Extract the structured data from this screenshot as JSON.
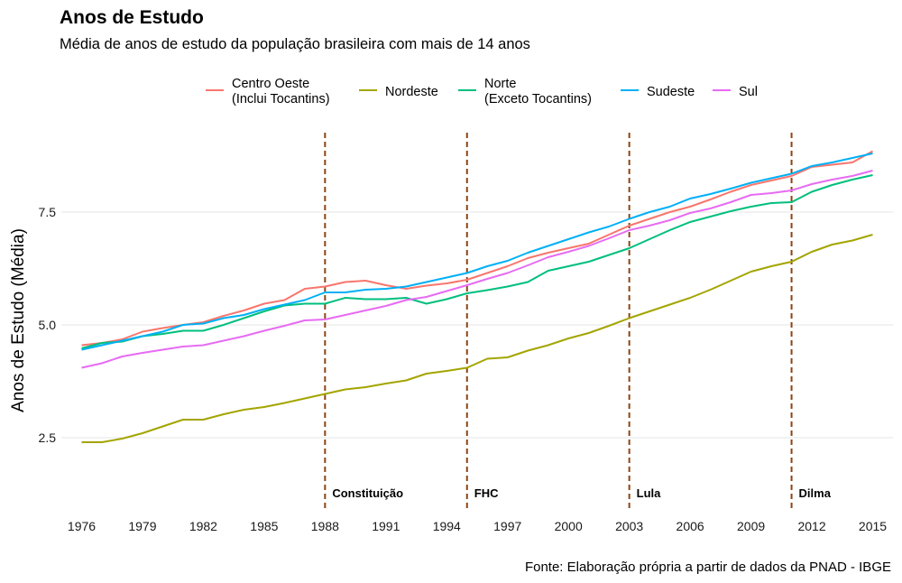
{
  "header": {
    "title": "Anos de Estudo",
    "subtitle": "Média de anos de estudo da população brasileira com mais de 14 anos"
  },
  "caption": "Fonte: Elaboração própria a partir de dados da PNAD - IBGE",
  "colors": {
    "grid": "#e6e6e6",
    "event_line": "#8b4513"
  },
  "chart_data": {
    "type": "line",
    "title": "Anos de Estudo",
    "xlabel": "",
    "ylabel": "Anos de Estudo (Média)",
    "xlim": [
      1975,
      2016
    ],
    "ylim": [
      0.9,
      9.3
    ],
    "xticks": [
      1976,
      1979,
      1982,
      1985,
      1988,
      1991,
      1994,
      1997,
      2000,
      2003,
      2006,
      2009,
      2012,
      2015
    ],
    "yticks": [
      2.5,
      5.0,
      7.5
    ],
    "ytick_labels": [
      "2.5",
      "5.0",
      "7.5"
    ],
    "grid": true,
    "legend_position": "top",
    "x": [
      1976,
      1977,
      1978,
      1979,
      1980,
      1981,
      1982,
      1983,
      1984,
      1985,
      1986,
      1987,
      1988,
      1989,
      1990,
      1991,
      1992,
      1993,
      1994,
      1995,
      1996,
      1997,
      1998,
      1999,
      2000,
      2001,
      2002,
      2003,
      2004,
      2005,
      2006,
      2007,
      2008,
      2009,
      2010,
      2011,
      2012,
      2013,
      2014,
      2015
    ],
    "series": [
      {
        "name": "Centro Oeste\n(Inclui Tocantins)",
        "color": "#f8766d",
        "values": [
          4.55,
          4.6,
          4.68,
          4.85,
          4.93,
          5.0,
          5.06,
          5.2,
          5.32,
          5.47,
          5.55,
          5.8,
          5.85,
          5.95,
          5.98,
          5.88,
          5.8,
          5.87,
          5.92,
          6.0,
          6.15,
          6.3,
          6.48,
          6.6,
          6.7,
          6.8,
          7.0,
          7.2,
          7.35,
          7.5,
          7.62,
          7.78,
          7.95,
          8.1,
          8.2,
          8.3,
          8.5,
          8.55,
          8.6,
          8.85
        ]
      },
      {
        "name": "Nordeste",
        "color": "#a3a500",
        "values": [
          2.4,
          2.4,
          2.48,
          2.6,
          2.75,
          2.9,
          2.9,
          3.02,
          3.12,
          3.18,
          3.27,
          3.37,
          3.47,
          3.57,
          3.62,
          3.7,
          3.77,
          3.92,
          3.98,
          4.05,
          4.25,
          4.28,
          4.43,
          4.55,
          4.7,
          4.82,
          4.98,
          5.15,
          5.3,
          5.45,
          5.6,
          5.78,
          5.98,
          6.18,
          6.3,
          6.4,
          6.62,
          6.78,
          6.87,
          7.0
        ]
      },
      {
        "name": "Norte\n(Exceto Tocantins)",
        "color": "#00bf7d",
        "values": [
          4.48,
          4.6,
          4.63,
          4.75,
          4.8,
          4.87,
          4.87,
          5.0,
          5.15,
          5.3,
          5.43,
          5.47,
          5.47,
          5.6,
          5.57,
          5.57,
          5.6,
          5.47,
          5.57,
          5.7,
          5.77,
          5.85,
          5.95,
          6.2,
          6.3,
          6.4,
          6.55,
          6.7,
          6.9,
          7.1,
          7.28,
          7.4,
          7.52,
          7.62,
          7.7,
          7.72,
          7.95,
          8.1,
          8.22,
          8.32
        ]
      },
      {
        "name": "Sudeste",
        "color": "#00b0f6",
        "values": [
          4.45,
          4.55,
          4.65,
          4.75,
          4.85,
          5.0,
          5.03,
          5.15,
          5.22,
          5.35,
          5.45,
          5.55,
          5.72,
          5.72,
          5.78,
          5.8,
          5.85,
          5.95,
          6.05,
          6.15,
          6.3,
          6.42,
          6.6,
          6.75,
          6.9,
          7.05,
          7.18,
          7.35,
          7.5,
          7.62,
          7.8,
          7.9,
          8.02,
          8.15,
          8.25,
          8.35,
          8.52,
          8.6,
          8.7,
          8.8
        ]
      },
      {
        "name": "Sul",
        "color": "#e76bf3",
        "values": [
          4.05,
          4.15,
          4.3,
          4.38,
          4.45,
          4.52,
          4.55,
          4.65,
          4.75,
          4.87,
          4.98,
          5.1,
          5.12,
          5.22,
          5.32,
          5.42,
          5.55,
          5.62,
          5.75,
          5.88,
          6.02,
          6.15,
          6.32,
          6.5,
          6.62,
          6.75,
          6.92,
          7.1,
          7.2,
          7.32,
          7.48,
          7.58,
          7.72,
          7.88,
          7.92,
          7.98,
          8.12,
          8.22,
          8.3,
          8.42
        ]
      }
    ],
    "annotations": [
      {
        "x": 1988,
        "label": "Constituição"
      },
      {
        "x": 1995,
        "label": "FHC"
      },
      {
        "x": 2003,
        "label": "Lula"
      },
      {
        "x": 2011,
        "label": "Dilma"
      }
    ]
  }
}
